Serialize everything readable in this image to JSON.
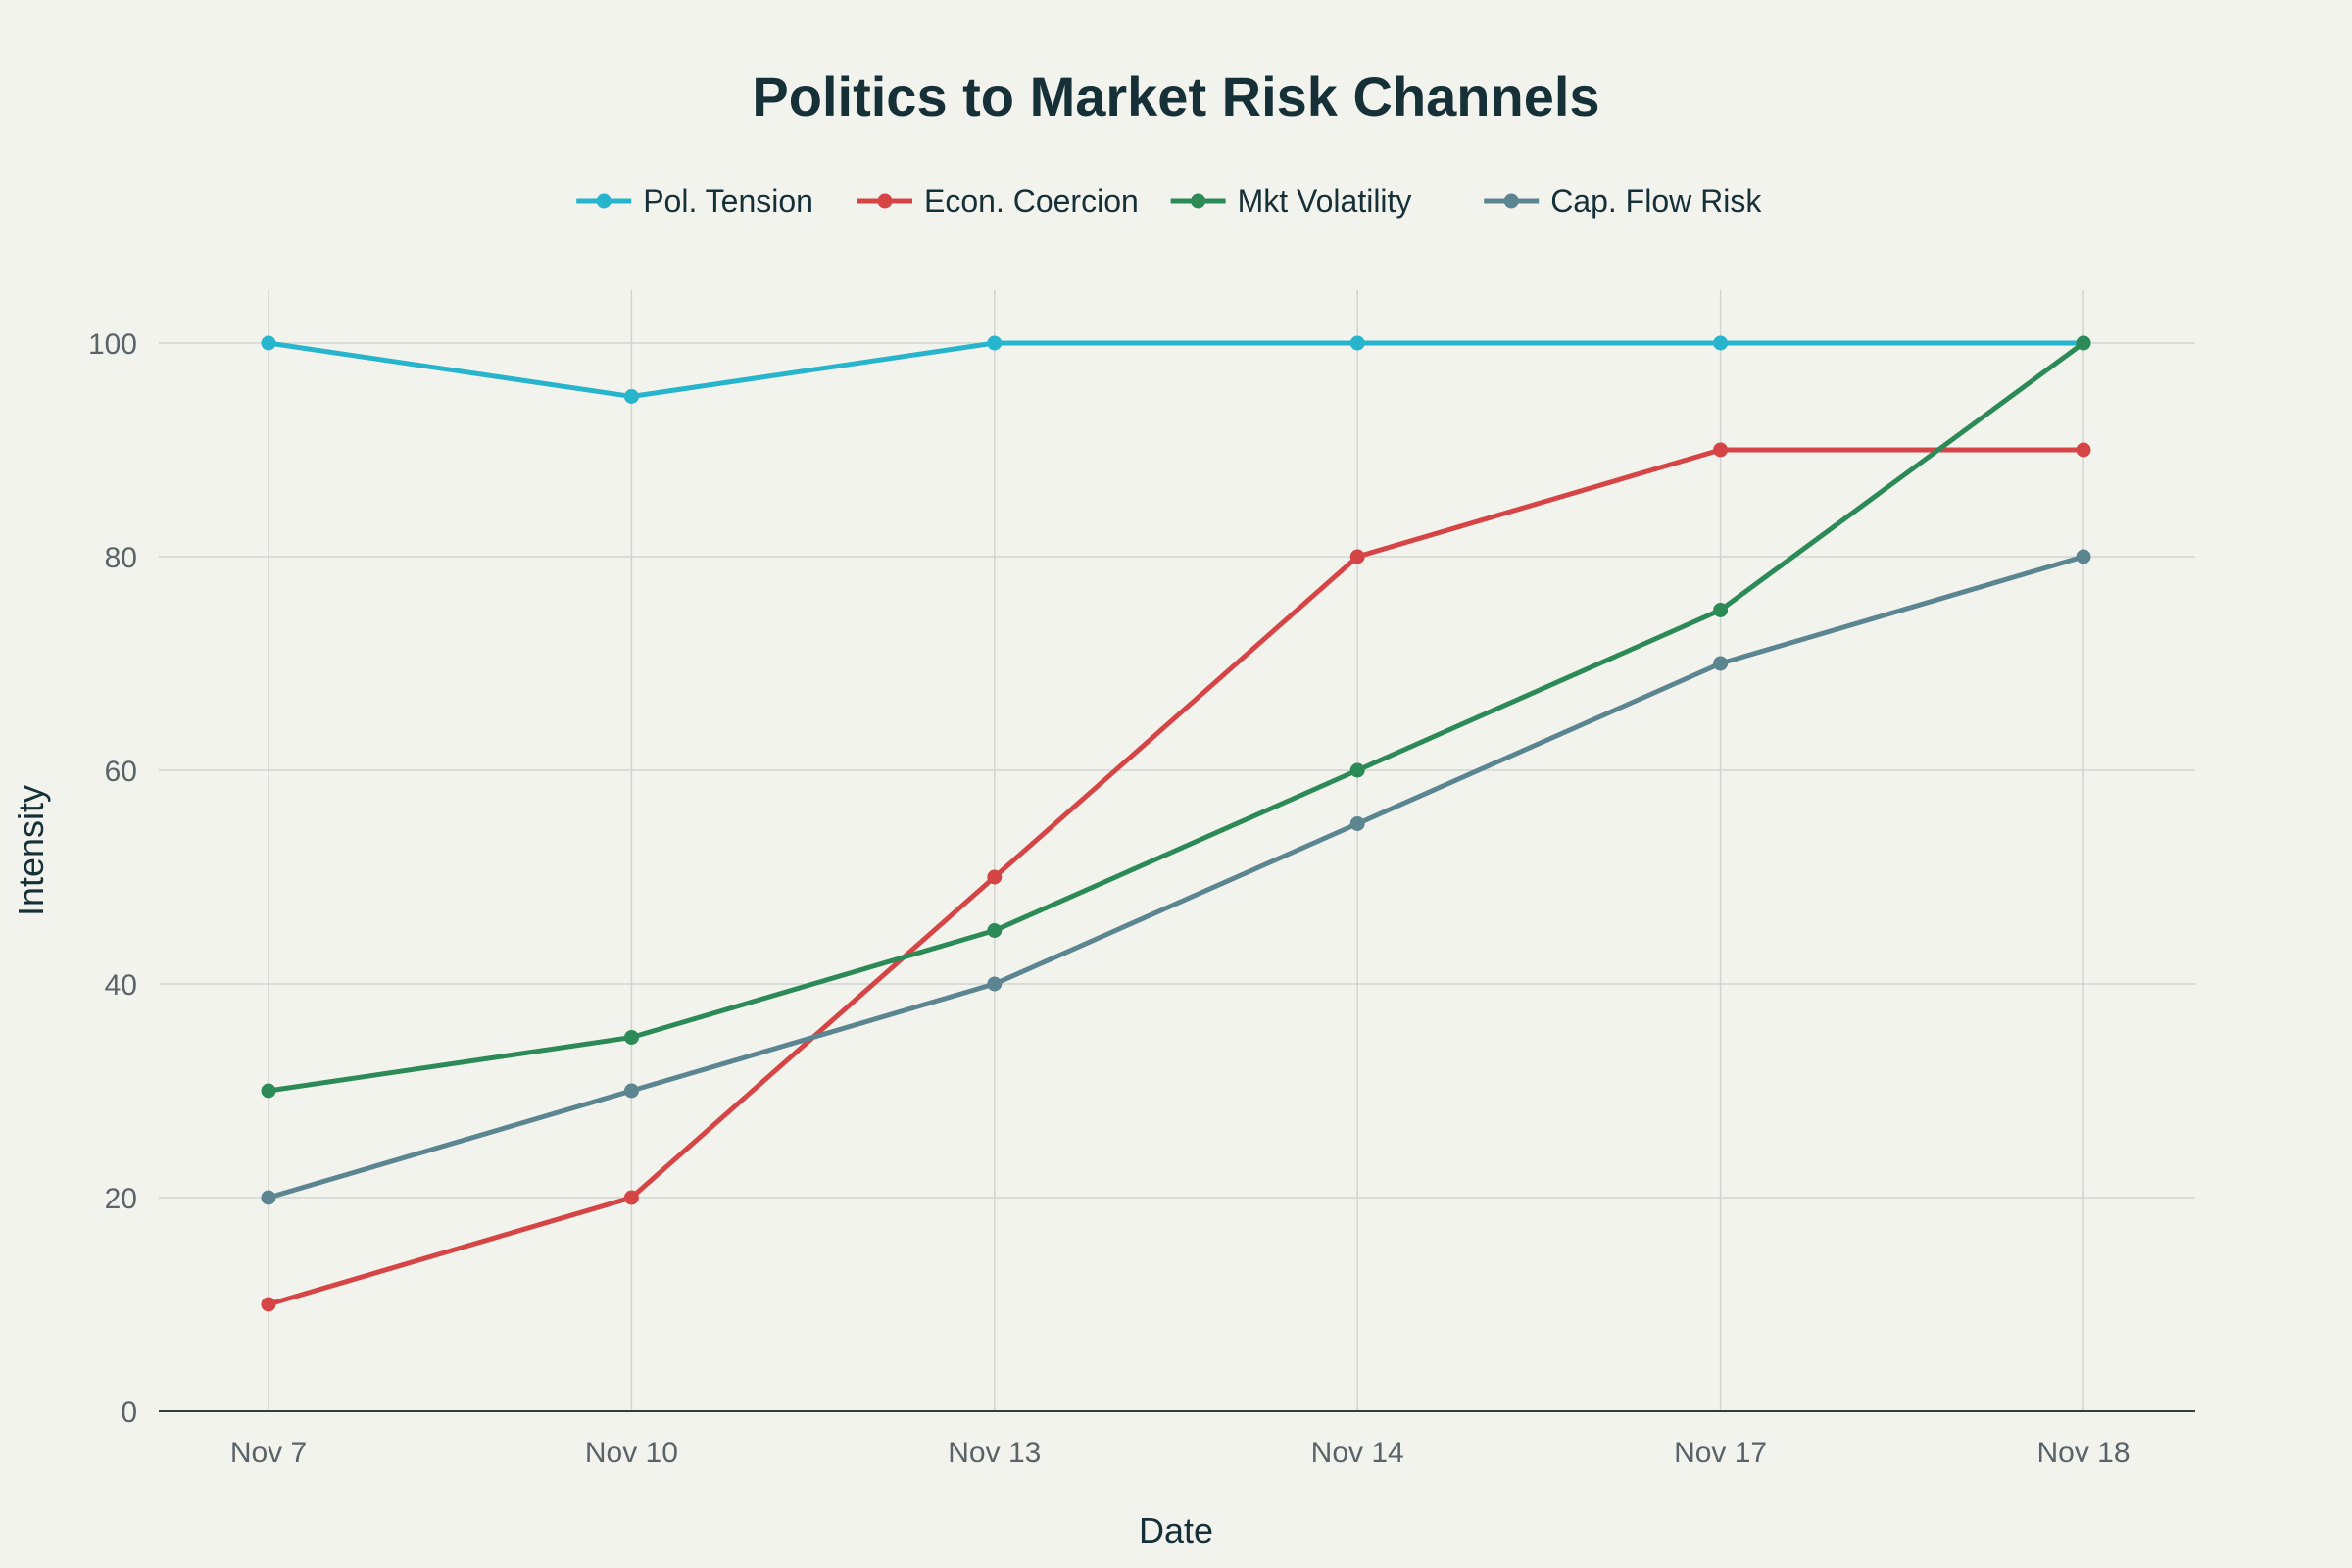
{
  "chart_data": {
    "type": "line",
    "title": "Politics to Market Risk Channels",
    "xlabel": "Date",
    "ylabel": "Intensity",
    "categories": [
      "Nov 7",
      "Nov 10",
      "Nov 13",
      "Nov 14",
      "Nov 17",
      "Nov 18"
    ],
    "ylim": [
      0,
      105
    ],
    "yticks": [
      0,
      20,
      40,
      60,
      80,
      100
    ],
    "grid": true,
    "legend_position": "top-center",
    "series": [
      {
        "name": "Pol. Tension",
        "color": "#26b5cc",
        "values": [
          100,
          95,
          100,
          100,
          100,
          100
        ]
      },
      {
        "name": "Econ. Coercion",
        "color": "#d64545",
        "values": [
          10,
          20,
          50,
          80,
          90,
          90
        ]
      },
      {
        "name": "Mkt Volatility",
        "color": "#2c8a57",
        "values": [
          30,
          35,
          45,
          60,
          75,
          100
        ]
      },
      {
        "name": "Cap. Flow Risk",
        "color": "#5b8590",
        "values": [
          20,
          30,
          40,
          55,
          70,
          80
        ]
      }
    ]
  }
}
